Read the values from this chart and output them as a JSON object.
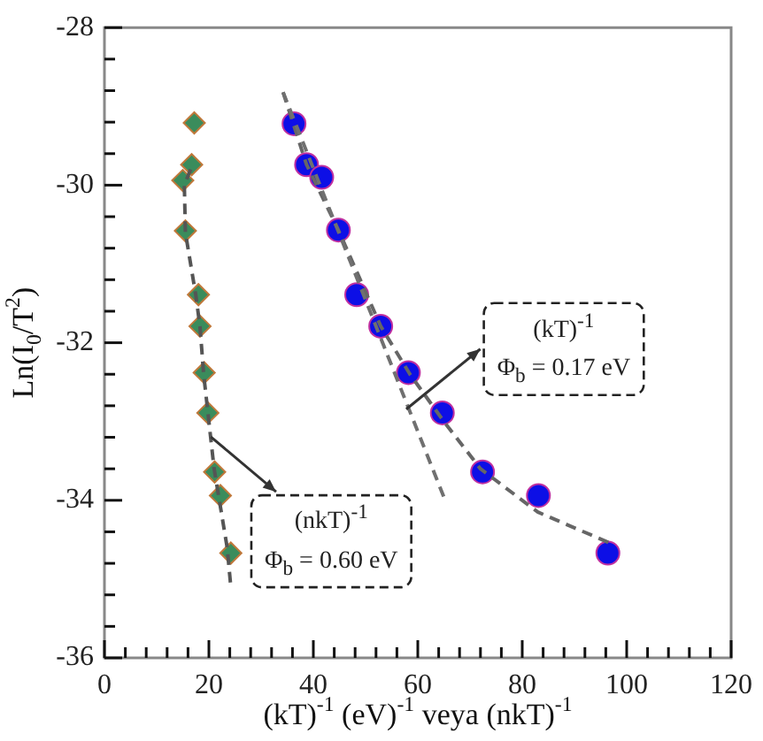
{
  "chart_data": {
    "type": "scatter",
    "xlabel": "(kT)$^{-1}$ (eV)$^{-1}$ veya (nkT)$^{-1}$",
    "ylabel": "Ln(I$_{0}$/T$^{2}$)",
    "xlim": [
      0,
      120
    ],
    "ylim": [
      -36,
      -28
    ],
    "xticks": [
      0,
      {
        "value": 4,
        "label": null
      },
      {
        "value": 8,
        "label": null
      },
      {
        "value": 12,
        "label": null
      },
      {
        "value": 16,
        "label": null
      },
      20,
      {
        "value": 24,
        "label": null
      },
      {
        "value": 28,
        "label": null
      },
      {
        "value": 32,
        "label": null
      },
      {
        "value": 36,
        "label": null
      },
      40,
      {
        "value": 44,
        "label": null
      },
      {
        "value": 48,
        "label": null
      },
      {
        "value": 52,
        "label": null
      },
      {
        "value": 56,
        "label": null
      },
      60,
      {
        "value": 64,
        "label": null
      },
      {
        "value": 68,
        "label": null
      },
      {
        "value": 72,
        "label": null
      },
      {
        "value": 76,
        "label": null
      },
      80,
      {
        "value": 84,
        "label": null
      },
      {
        "value": 88,
        "label": null
      },
      {
        "value": 92,
        "label": null
      },
      {
        "value": 96,
        "label": null
      },
      100,
      {
        "value": 104,
        "label": null
      },
      {
        "value": 108,
        "label": null
      },
      {
        "value": 112,
        "label": null
      },
      {
        "value": 116,
        "label": null
      },
      120
    ],
    "yticks": [
      -36,
      {
        "value": -35.6,
        "label": null
      },
      {
        "value": -35.2,
        "label": null
      },
      {
        "value": -34.8,
        "label": null
      },
      {
        "value": -34.4,
        "label": null
      },
      -34,
      {
        "value": -33.6,
        "label": null
      },
      {
        "value": -33.2,
        "label": null
      },
      {
        "value": -32.8,
        "label": null
      },
      {
        "value": -32.4,
        "label": null
      },
      -32,
      {
        "value": -31.6,
        "label": null
      },
      {
        "value": -31.2,
        "label": null
      },
      {
        "value": -30.8,
        "label": null
      },
      {
        "value": -30.4,
        "label": null
      },
      -30,
      {
        "value": -29.6,
        "label": null
      },
      {
        "value": -29.2,
        "label": null
      },
      {
        "value": -28.8,
        "label": null
      },
      {
        "value": -28.4,
        "label": null
      },
      -28
    ],
    "grid": false,
    "legend": false,
    "series": [
      {
        "type": "line",
        "color": "#707070",
        "line_style": "dashed",
        "marker": "none",
        "x": [
          34.2,
          65.0
        ],
        "values": [
          -28.82,
          -33.96
        ]
      },
      {
        "type": "line",
        "color": "#666666",
        "line_style": "dashed",
        "marker": "none",
        "x": [
          34.2,
          38.7,
          44.8,
          52.9,
          58.5,
          65.0,
          72.0,
          83.0,
          96.7
        ],
        "values": [
          -28.82,
          -29.74,
          -30.57,
          -31.79,
          -32.4,
          -33.0,
          -33.6,
          -34.15,
          -34.54
        ]
      },
      {
        "type": "line",
        "color": "#555555",
        "line_style": "dashed",
        "marker": "none",
        "x": [
          16.5,
          15.3,
          15.5,
          17.5,
          18.3,
          19.0,
          20.0,
          21.0,
          22.0,
          23.5,
          24.2
        ],
        "values": [
          -29.8,
          -30.0,
          -30.6,
          -31.4,
          -31.8,
          -32.4,
          -33.0,
          -33.6,
          -34.0,
          -34.6,
          -35.1
        ]
      },
      {
        "type": "scatter",
        "color": "#0d0fe6",
        "marker": "circle",
        "x": [
          36.3,
          38.7,
          41.6,
          44.8,
          48.3,
          52.9,
          58.2,
          64.7,
          72.4,
          83.1,
          96.4
        ],
        "values": [
          -29.22,
          -29.74,
          -29.9,
          -30.57,
          -31.39,
          -31.79,
          -32.38,
          -32.89,
          -33.64,
          -33.94,
          -34.67
        ]
      },
      {
        "type": "scatter",
        "color": "#3a8c5c",
        "marker": "diamond",
        "x": [
          17.2,
          16.7,
          15.0,
          15.5,
          18.0,
          18.3,
          19.1,
          19.8,
          21.1,
          22.2,
          24.2
        ],
        "values": [
          -29.21,
          -29.74,
          -29.94,
          -30.58,
          -31.39,
          -31.79,
          -32.38,
          -32.89,
          -33.64,
          -33.94,
          -34.67
        ]
      }
    ],
    "annotations": [
      "(kT)$^{-1}$ Φ$_{b}$ = 0.17 eV",
      "(nkT)$^{-1}$ Φ$_{b}$ = 0.60 eV"
    ]
  }
}
